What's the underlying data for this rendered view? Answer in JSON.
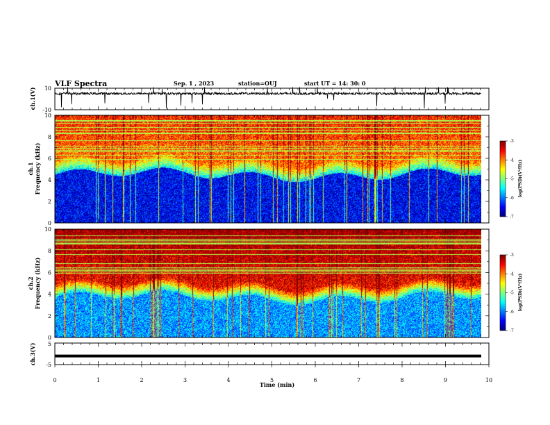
{
  "header": {
    "title": "VLF Spectra",
    "date": "Sep. 1 , 2023",
    "station": "station=OUJ",
    "start": "start UT =  14: 30: 0"
  },
  "chart_data": [
    {
      "type": "line",
      "ylabel": "ch.1(V)",
      "ylim": [
        -10,
        10
      ],
      "yticks": [
        "10",
        "-10"
      ],
      "xlim": [
        0,
        10
      ],
      "description_series": "dense noisy waveform centered near 5 V with spikes",
      "baseline": 5
    },
    {
      "type": "heatmap",
      "ylabel_line1": "ch.1",
      "ylabel_line2": "Frequency (kHz)",
      "ylim": [
        0,
        10
      ],
      "yticks": [
        "0",
        "2",
        "4",
        "6",
        "8",
        "10"
      ],
      "xlim": [
        0,
        9.83
      ],
      "colorbar": {
        "range": [
          -7,
          -3
        ],
        "ticks": [
          "-3",
          "-4",
          "-5",
          "-6",
          "-7"
        ],
        "label": "log(PSD)(V²/Hz)"
      },
      "low_band_top_khz": 4.5
    },
    {
      "type": "heatmap",
      "ylabel_line1": "ch.2",
      "ylabel_line2": "Frequency (kHz)",
      "ylim": [
        0,
        10
      ],
      "yticks": [
        "0",
        "2",
        "4",
        "6",
        "8",
        "10"
      ],
      "xlim": [
        0,
        9.83
      ],
      "colorbar": {
        "range": [
          -7,
          -3
        ],
        "ticks": [
          "-3",
          "-4",
          "-5",
          "-6",
          "-7"
        ],
        "label": "log(PSD)(V²/Hz)"
      },
      "low_band_top_khz": 3.7
    },
    {
      "type": "line",
      "ylabel": "ch.3(V)",
      "ylim": [
        -5,
        5
      ],
      "yticks": [
        "5",
        "-5"
      ],
      "xlim": [
        0,
        10
      ],
      "xlabel": "Time (min)",
      "xticks": [
        "0",
        "1",
        "2",
        "3",
        "4",
        "5",
        "6",
        "7",
        "8",
        "9",
        "10"
      ],
      "constant_value": -1
    }
  ]
}
